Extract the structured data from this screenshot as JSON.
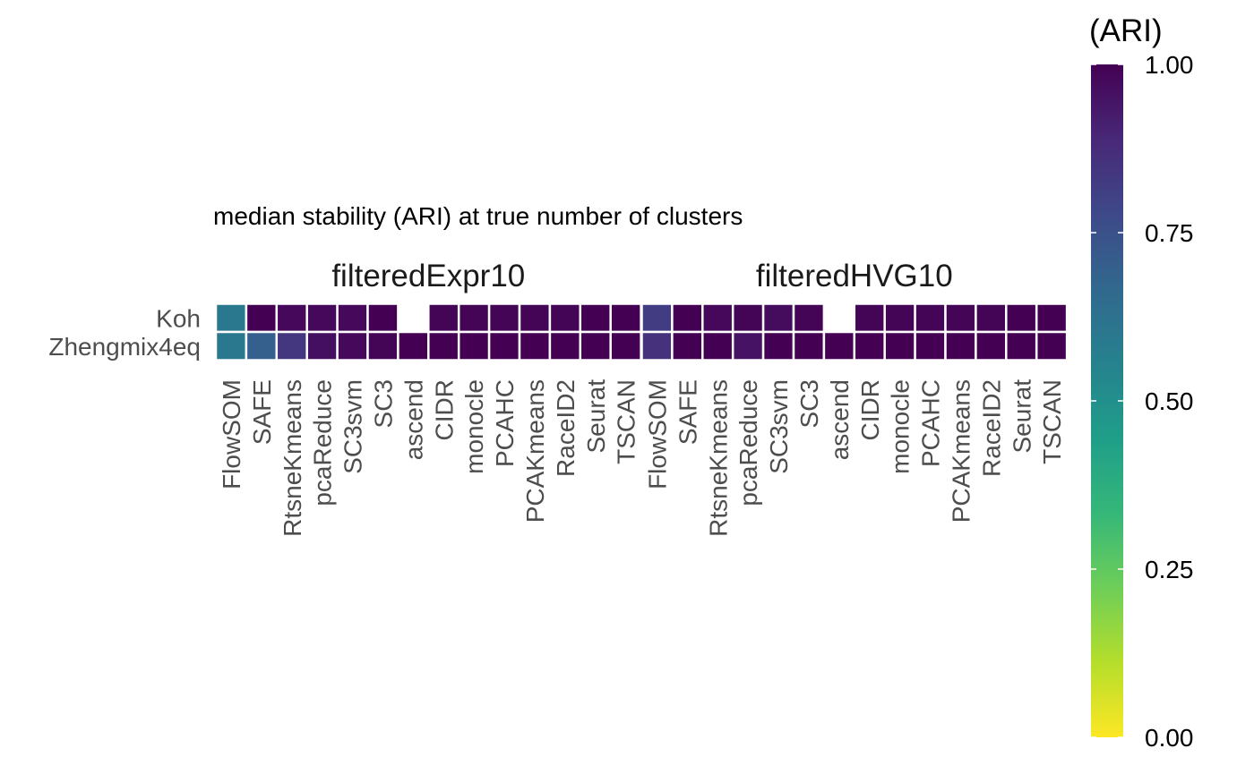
{
  "chart_data": {
    "type": "heatmap",
    "title": "median stability (ARI) at true number of clusters",
    "rows": [
      "Koh",
      "Zhengmix4eq"
    ],
    "columns": [
      "FlowSOM",
      "SAFE",
      "RtsneKmeans",
      "pcaReduce",
      "SC3svm",
      "SC3",
      "ascend",
      "CIDR",
      "monocle",
      "PCAHC",
      "PCAKmeans",
      "RaceID2",
      "Seurat",
      "TSCAN"
    ],
    "facets": [
      {
        "name": "filteredExpr10",
        "values": [
          [
            0.6,
            1.0,
            0.98,
            0.98,
            0.98,
            1.0,
            null,
            0.99,
            0.99,
            0.99,
            0.99,
            0.99,
            1.0,
            1.0
          ],
          [
            0.6,
            0.7,
            0.84,
            0.96,
            0.98,
            0.99,
            1.0,
            1.0,
            1.0,
            1.0,
            1.0,
            1.0,
            1.0,
            1.0
          ]
        ]
      },
      {
        "name": "filteredHVG10",
        "values": [
          [
            0.82,
            1.0,
            0.98,
            0.99,
            0.97,
            0.99,
            null,
            0.99,
            0.99,
            0.99,
            0.99,
            0.99,
            1.0,
            1.0
          ],
          [
            0.86,
            1.0,
            1.0,
            0.95,
            1.0,
            1.0,
            1.0,
            1.0,
            1.0,
            1.0,
            1.0,
            1.0,
            1.0,
            1.0
          ]
        ]
      }
    ],
    "legend": {
      "title": "(ARI)",
      "range": [
        0,
        1
      ],
      "ticks": [
        "0.00",
        "0.25",
        "0.50",
        "0.75",
        "1.00"
      ],
      "palette": "viridis"
    },
    "colors": {
      "viridis_stops": [
        "#fde725",
        "#b5de2b",
        "#6ece58",
        "#35b779",
        "#1f9e89",
        "#26828e",
        "#31688e",
        "#3e4989",
        "#482878",
        "#440154"
      ]
    }
  }
}
